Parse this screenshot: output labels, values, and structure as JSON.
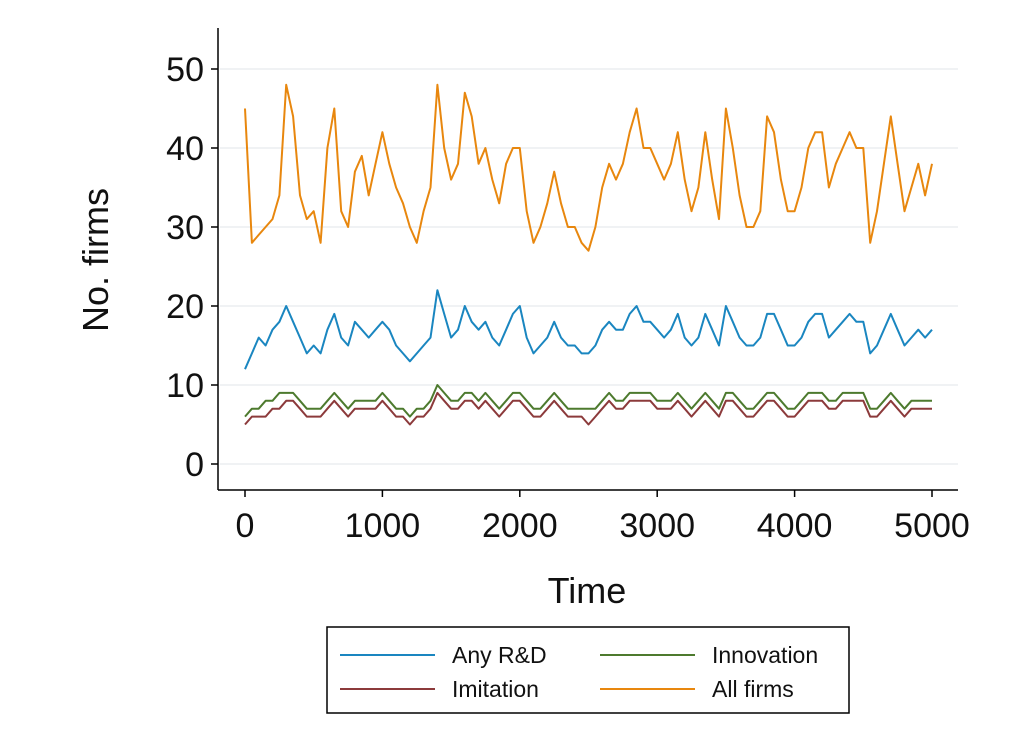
{
  "chart_data": {
    "type": "line",
    "xlabel": "Time",
    "ylabel": "No. firms",
    "xlim": [
      0,
      5000
    ],
    "ylim": [
      0,
      55
    ],
    "xticks": [
      0,
      1000,
      2000,
      3000,
      4000,
      5000
    ],
    "yticks": [
      0,
      10,
      20,
      30,
      40,
      50
    ],
    "grid": true,
    "legend_position": "bottom",
    "series": [
      {
        "name": "All firms",
        "color": "#E8870E",
        "x": [
          0,
          50,
          100,
          150,
          200,
          250,
          300,
          350,
          400,
          450,
          500,
          550,
          600,
          650,
          700,
          750,
          800,
          850,
          900,
          950,
          1000,
          1050,
          1100,
          1150,
          1200,
          1250,
          1300,
          1350,
          1400,
          1450,
          1500,
          1550,
          1600,
          1650,
          1700,
          1750,
          1800,
          1850,
          1900,
          1950,
          2000,
          2050,
          2100,
          2150,
          2200,
          2250,
          2300,
          2350,
          2400,
          2450,
          2500,
          2550,
          2600,
          2650,
          2700,
          2750,
          2800,
          2850,
          2900,
          2950,
          3000,
          3050,
          3100,
          3150,
          3200,
          3250,
          3300,
          3350,
          3400,
          3450,
          3500,
          3550,
          3600,
          3650,
          3700,
          3750,
          3800,
          3850,
          3900,
          3950,
          4000,
          4050,
          4100,
          4150,
          4200,
          4250,
          4300,
          4350,
          4400,
          4450,
          4500,
          4550,
          4600,
          4650,
          4700,
          4750,
          4800,
          4850,
          4900,
          4950,
          5000
        ],
        "y": [
          45,
          28,
          29,
          30,
          31,
          34,
          48,
          44,
          34,
          31,
          32,
          28,
          40,
          45,
          32,
          30,
          37,
          39,
          34,
          38,
          42,
          38,
          35,
          33,
          30,
          28,
          32,
          35,
          48,
          40,
          36,
          38,
          47,
          44,
          38,
          40,
          36,
          33,
          38,
          40,
          40,
          32,
          28,
          30,
          33,
          37,
          33,
          30,
          30,
          28,
          27,
          30,
          35,
          38,
          36,
          38,
          42,
          45,
          40,
          40,
          38,
          36,
          38,
          42,
          36,
          32,
          35,
          42,
          36,
          31,
          45,
          40,
          34,
          30,
          30,
          32,
          44,
          42,
          36,
          32,
          32,
          35,
          40,
          42,
          42,
          35,
          38,
          40,
          42,
          40,
          40,
          28,
          32,
          38,
          44,
          38,
          32,
          35,
          38,
          34,
          38
        ]
      },
      {
        "name": "Any R&D",
        "color": "#1A86C0",
        "x": [
          0,
          50,
          100,
          150,
          200,
          250,
          300,
          350,
          400,
          450,
          500,
          550,
          600,
          650,
          700,
          750,
          800,
          850,
          900,
          950,
          1000,
          1050,
          1100,
          1150,
          1200,
          1250,
          1300,
          1350,
          1400,
          1450,
          1500,
          1550,
          1600,
          1650,
          1700,
          1750,
          1800,
          1850,
          1900,
          1950,
          2000,
          2050,
          2100,
          2150,
          2200,
          2250,
          2300,
          2350,
          2400,
          2450,
          2500,
          2550,
          2600,
          2650,
          2700,
          2750,
          2800,
          2850,
          2900,
          2950,
          3000,
          3050,
          3100,
          3150,
          3200,
          3250,
          3300,
          3350,
          3400,
          3450,
          3500,
          3550,
          3600,
          3650,
          3700,
          3750,
          3800,
          3850,
          3900,
          3950,
          4000,
          4050,
          4100,
          4150,
          4200,
          4250,
          4300,
          4350,
          4400,
          4450,
          4500,
          4550,
          4600,
          4650,
          4700,
          4750,
          4800,
          4850,
          4900,
          4950,
          5000
        ],
        "y": [
          12,
          14,
          16,
          15,
          17,
          18,
          20,
          18,
          16,
          14,
          15,
          14,
          17,
          19,
          16,
          15,
          18,
          17,
          16,
          17,
          18,
          17,
          15,
          14,
          13,
          14,
          15,
          16,
          22,
          19,
          16,
          17,
          20,
          18,
          17,
          18,
          16,
          15,
          17,
          19,
          20,
          16,
          14,
          15,
          16,
          18,
          16,
          15,
          15,
          14,
          14,
          15,
          17,
          18,
          17,
          17,
          19,
          20,
          18,
          18,
          17,
          16,
          17,
          19,
          16,
          15,
          16,
          19,
          17,
          15,
          20,
          18,
          16,
          15,
          15,
          16,
          19,
          19,
          17,
          15,
          15,
          16,
          18,
          19,
          19,
          16,
          17,
          18,
          19,
          18,
          18,
          14,
          15,
          17,
          19,
          17,
          15,
          16,
          17,
          16,
          17
        ]
      },
      {
        "name": "Innovation",
        "color": "#4D7A2E",
        "x": [
          0,
          50,
          100,
          150,
          200,
          250,
          300,
          350,
          400,
          450,
          500,
          550,
          600,
          650,
          700,
          750,
          800,
          850,
          900,
          950,
          1000,
          1050,
          1100,
          1150,
          1200,
          1250,
          1300,
          1350,
          1400,
          1450,
          1500,
          1550,
          1600,
          1650,
          1700,
          1750,
          1800,
          1850,
          1900,
          1950,
          2000,
          2050,
          2100,
          2150,
          2200,
          2250,
          2300,
          2350,
          2400,
          2450,
          2500,
          2550,
          2600,
          2650,
          2700,
          2750,
          2800,
          2850,
          2900,
          2950,
          3000,
          3050,
          3100,
          3150,
          3200,
          3250,
          3300,
          3350,
          3400,
          3450,
          3500,
          3550,
          3600,
          3650,
          3700,
          3750,
          3800,
          3850,
          3900,
          3950,
          4000,
          4050,
          4100,
          4150,
          4200,
          4250,
          4300,
          4350,
          4400,
          4450,
          4500,
          4550,
          4600,
          4650,
          4700,
          4750,
          4800,
          4850,
          4900,
          4950,
          5000
        ],
        "y": [
          6,
          7,
          7,
          8,
          8,
          9,
          9,
          9,
          8,
          7,
          7,
          7,
          8,
          9,
          8,
          7,
          8,
          8,
          8,
          8,
          9,
          8,
          7,
          7,
          6,
          7,
          7,
          8,
          10,
          9,
          8,
          8,
          9,
          9,
          8,
          9,
          8,
          7,
          8,
          9,
          9,
          8,
          7,
          7,
          8,
          9,
          8,
          7,
          7,
          7,
          7,
          7,
          8,
          9,
          8,
          8,
          9,
          9,
          9,
          9,
          8,
          8,
          8,
          9,
          8,
          7,
          8,
          9,
          8,
          7,
          9,
          9,
          8,
          7,
          7,
          8,
          9,
          9,
          8,
          7,
          7,
          8,
          9,
          9,
          9,
          8,
          8,
          9,
          9,
          9,
          9,
          7,
          7,
          8,
          9,
          8,
          7,
          8,
          8,
          8,
          8
        ]
      },
      {
        "name": "Imitation",
        "color": "#8C3A3B",
        "x": [
          0,
          50,
          100,
          150,
          200,
          250,
          300,
          350,
          400,
          450,
          500,
          550,
          600,
          650,
          700,
          750,
          800,
          850,
          900,
          950,
          1000,
          1050,
          1100,
          1150,
          1200,
          1250,
          1300,
          1350,
          1400,
          1450,
          1500,
          1550,
          1600,
          1650,
          1700,
          1750,
          1800,
          1850,
          1900,
          1950,
          2000,
          2050,
          2100,
          2150,
          2200,
          2250,
          2300,
          2350,
          2400,
          2450,
          2500,
          2550,
          2600,
          2650,
          2700,
          2750,
          2800,
          2850,
          2900,
          2950,
          3000,
          3050,
          3100,
          3150,
          3200,
          3250,
          3300,
          3350,
          3400,
          3450,
          3500,
          3550,
          3600,
          3650,
          3700,
          3750,
          3800,
          3850,
          3900,
          3950,
          4000,
          4050,
          4100,
          4150,
          4200,
          4250,
          4300,
          4350,
          4400,
          4450,
          4500,
          4550,
          4600,
          4650,
          4700,
          4750,
          4800,
          4850,
          4900,
          4950,
          5000
        ],
        "y": [
          5,
          6,
          6,
          6,
          7,
          7,
          8,
          8,
          7,
          6,
          6,
          6,
          7,
          8,
          7,
          6,
          7,
          7,
          7,
          7,
          8,
          7,
          6,
          6,
          5,
          6,
          6,
          7,
          9,
          8,
          7,
          7,
          8,
          8,
          7,
          8,
          7,
          6,
          7,
          8,
          8,
          7,
          6,
          6,
          7,
          8,
          7,
          6,
          6,
          6,
          5,
          6,
          7,
          8,
          7,
          7,
          8,
          8,
          8,
          8,
          7,
          7,
          7,
          8,
          7,
          6,
          7,
          8,
          7,
          6,
          8,
          8,
          7,
          6,
          6,
          7,
          8,
          8,
          7,
          6,
          6,
          7,
          8,
          8,
          8,
          7,
          7,
          8,
          8,
          8,
          8,
          6,
          6,
          7,
          8,
          7,
          6,
          7,
          7,
          7,
          7
        ]
      }
    ],
    "legend": [
      {
        "name": "Any R&D",
        "color": "#1A86C0"
      },
      {
        "name": "Innovation",
        "color": "#4D7A2E"
      },
      {
        "name": "Imitation",
        "color": "#8C3A3B"
      },
      {
        "name": "All firms",
        "color": "#E8870E"
      }
    ]
  }
}
